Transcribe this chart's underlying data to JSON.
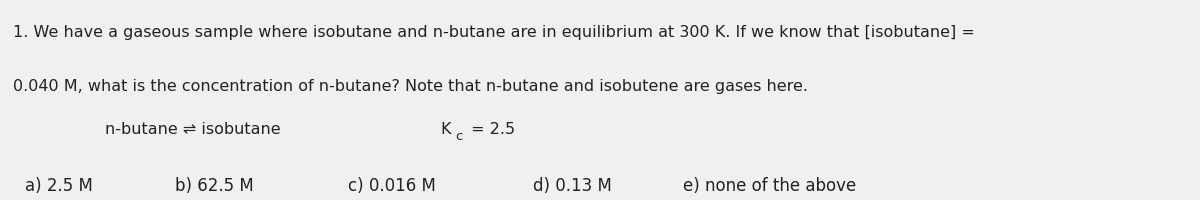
{
  "background_color": "#f0f0f0",
  "fig_width": 12.0,
  "fig_height": 2.0,
  "line1": "1. We have a gaseous sample where isobutane and ",
  "line1_italic": "n",
  "line1b": "-butane are in equilibrium at 300 K. If we know that [isobutane] =",
  "line2_start": "0.040 M, what is the concentration of ",
  "line2_italic": "n",
  "line2b": "-butane? Note that n-butane and isobutene are gases here.",
  "equation_left": "n",
  "equation_left2": "-butane ⇌ isobutane",
  "equation_kc": "K",
  "equation_kc_sub": "c",
  "equation_kc_val": " = 2.5",
  "answers": [
    "a) 2.5 M",
    "b) 62.5 M",
    "c) 0.016 M",
    "d) 0.13 M",
    "e) none of the above"
  ],
  "text_color": "#222222",
  "font_size_main": 11.5,
  "font_size_eq": 11.5,
  "font_size_ans": 12.0
}
